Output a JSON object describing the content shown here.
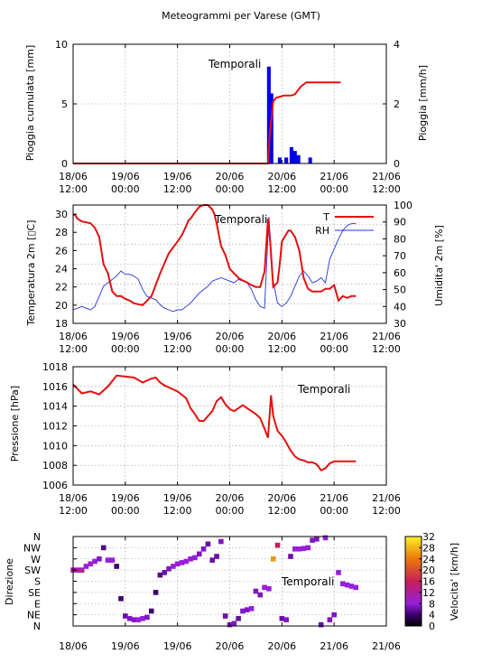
{
  "title": "Meteogrammi per Varese (GMT)",
  "time_ticks": [
    {
      "date": "18/06",
      "time": "12:00"
    },
    {
      "date": "19/06",
      "time": "00:00"
    },
    {
      "date": "19/06",
      "time": "12:00"
    },
    {
      "date": "20/06",
      "time": "00:00"
    },
    {
      "date": "20/06",
      "time": "12:00"
    },
    {
      "date": "21/06",
      "time": "00:00"
    },
    {
      "date": "21/06",
      "time": "12:00"
    }
  ],
  "wind_ticks": [
    "18/06",
    "19/06",
    "19/06",
    "20/06",
    "20/06",
    "21/06",
    "21/06"
  ],
  "colors": {
    "temperature": "#e41010",
    "rh": "#2233dd",
    "rain": "#0000ee",
    "cumulative": "#e41010"
  },
  "chart_data": [
    {
      "type": "bar",
      "annotation": "Temporali",
      "ylabel": "Pioggia cumulata [mm]",
      "y2label": "Pioggia [mm/h]",
      "ylim": [
        0,
        10
      ],
      "y2lim": [
        0,
        4
      ],
      "yticks": [
        "0",
        "5",
        "10"
      ],
      "y2ticks": [
        "0",
        "2",
        "4"
      ],
      "xlim_hours": [
        0,
        72
      ],
      "cumulative_mm": {
        "x_hours": [
          0,
          44.8,
          45.2,
          46,
          46.6,
          47.5,
          48.5,
          50,
          51,
          51.8,
          52.5,
          53.6,
          55,
          58,
          60,
          61.5
        ],
        "values": [
          0,
          0,
          2.4,
          5.2,
          5.5,
          5.6,
          5.7,
          5.7,
          5.8,
          6.2,
          6.5,
          6.8,
          6.8,
          6.8,
          6.8,
          6.8
        ]
      },
      "rain_rate_mmh": {
        "x_hours": [
          45,
          45.6,
          47.5,
          49,
          50.2,
          51,
          51.8,
          54.5
        ],
        "values": [
          3.25,
          2.35,
          0.2,
          0.2,
          0.55,
          0.42,
          0.28,
          0.2
        ]
      }
    },
    {
      "type": "line",
      "annotation": "Temporali",
      "ylabel": "Temperatura 2m [▯C]",
      "y2label": "Umidita' 2m [%]",
      "ylim": [
        18,
        31
      ],
      "y2lim": [
        30,
        100
      ],
      "yticks": [
        "18",
        "20",
        "22",
        "24",
        "26",
        "28",
        "30"
      ],
      "y2ticks": [
        "30",
        "40",
        "50",
        "60",
        "70",
        "80",
        "90",
        "100"
      ],
      "legend": [
        {
          "label": "T",
          "series": "temperature"
        },
        {
          "label": "RH",
          "series": "rh"
        }
      ],
      "legend_position": "top-right",
      "series": [
        {
          "name": "T",
          "x_hours": [
            0,
            0.5,
            1,
            2,
            4,
            5,
            6,
            7,
            7.5,
            8,
            9,
            10,
            11,
            12,
            13,
            14,
            16,
            18,
            20,
            22,
            24,
            25,
            26,
            26.5,
            27,
            28,
            29,
            30,
            31,
            32,
            32.5,
            33,
            34,
            35,
            36,
            37,
            38,
            39,
            40,
            41,
            42,
            43,
            44,
            44.8,
            45.3,
            46,
            47,
            47.5,
            48,
            49,
            49.5,
            50,
            51,
            52,
            53,
            54,
            55,
            56,
            57,
            58,
            59,
            60,
            61,
            62,
            63,
            64,
            65
          ],
          "values": [
            29.9,
            29.9,
            29.5,
            29.2,
            29.0,
            28.5,
            27.5,
            24.5,
            24.0,
            23.5,
            21.5,
            21.0,
            21.0,
            20.7,
            20.5,
            20.2,
            20.0,
            21.0,
            23.5,
            25.7,
            27.0,
            27.7,
            28.7,
            29.3,
            29.5,
            30.2,
            30.8,
            31.0,
            31.0,
            30.5,
            30.0,
            29.0,
            26.5,
            25.5,
            24.0,
            23.5,
            23.0,
            22.7,
            22.5,
            22.2,
            22.0,
            22.0,
            23.7,
            29.5,
            27.0,
            22.0,
            22.5,
            24.5,
            27.0,
            27.8,
            28.2,
            28.2,
            27.5,
            26.0,
            23.0,
            21.8,
            21.5,
            21.5,
            21.5,
            21.8,
            21.8,
            22.2,
            20.5,
            21.0,
            20.8,
            21.0,
            21.0
          ]
        },
        {
          "name": "RH",
          "x_hours": [
            0,
            1,
            2,
            3,
            4,
            5,
            6,
            7,
            8,
            9,
            10,
            11,
            12,
            13,
            14,
            15,
            16,
            17,
            18,
            19,
            20,
            21,
            22,
            23,
            24,
            25,
            26,
            27,
            28,
            29,
            30,
            31,
            32,
            33,
            34,
            35,
            36,
            37,
            38,
            39,
            40,
            41,
            42,
            43,
            44,
            45,
            46,
            47,
            48,
            49,
            50,
            51,
            52,
            53,
            54,
            55,
            56,
            57,
            58,
            59,
            60,
            61,
            62,
            63,
            64,
            65
          ],
          "values": [
            38,
            39,
            40,
            39,
            38,
            40,
            46,
            52,
            54,
            56,
            58,
            61,
            59,
            59,
            58,
            56,
            50,
            46,
            45,
            44,
            41,
            39,
            38,
            37,
            38,
            38,
            40,
            42,
            45,
            48,
            50,
            52,
            55,
            56,
            57,
            56,
            55,
            54,
            56,
            55,
            54,
            50,
            44,
            40,
            39,
            93,
            55,
            42,
            40,
            42,
            46,
            52,
            58,
            61,
            58,
            54,
            55,
            57,
            54,
            68,
            74,
            80,
            85,
            88,
            89,
            89
          ]
        }
      ]
    },
    {
      "type": "line",
      "annotation": "Temporali",
      "ylabel": "Pressione [hPa]",
      "ylim": [
        1006,
        1018
      ],
      "yticks": [
        "1006",
        "1008",
        "1010",
        "1012",
        "1014",
        "1016",
        "1018"
      ],
      "series": [
        {
          "name": "",
          "x_hours": [
            0,
            2,
            4,
            6,
            8,
            10,
            12,
            14,
            16,
            17,
            18,
            19,
            20,
            21,
            22,
            24,
            26,
            27,
            28,
            29,
            30,
            31,
            32,
            33,
            34,
            35,
            36,
            37,
            38,
            39,
            40,
            41,
            42,
            43,
            44,
            44.8,
            45.5,
            46,
            47,
            48,
            49,
            50,
            51,
            52,
            53,
            54,
            55,
            56,
            57,
            58,
            59,
            60,
            61,
            62,
            63,
            64,
            65
          ],
          "values": [
            1016.2,
            1015.3,
            1015.5,
            1015.2,
            1016.0,
            1017.1,
            1017.0,
            1016.9,
            1016.4,
            1016.6,
            1016.8,
            1016.9,
            1016.4,
            1016.1,
            1015.9,
            1015.5,
            1014.8,
            1013.8,
            1013.2,
            1012.5,
            1012.5,
            1013.0,
            1013.5,
            1014.5,
            1014.9,
            1014.2,
            1013.7,
            1013.5,
            1013.8,
            1014.1,
            1013.8,
            1013.5,
            1013.2,
            1012.8,
            1011.7,
            1010.8,
            1015.1,
            1013.0,
            1011.5,
            1011.0,
            1010.3,
            1009.5,
            1008.9,
            1008.6,
            1008.5,
            1008.3,
            1008.3,
            1008.1,
            1007.5,
            1007.7,
            1008.2,
            1008.4,
            1008.4,
            1008.4,
            1008.4,
            1008.4,
            1008.4
          ]
        }
      ]
    },
    {
      "type": "scatter",
      "annotation": "Temporali",
      "ylabel": "Direzione",
      "colorbar_label": "Velocita' [km/h]",
      "colorbar_range": [
        0,
        32
      ],
      "colorbar_ticks": [
        "0",
        "4",
        "8",
        "12",
        "16",
        "20",
        "24",
        "28",
        "32"
      ],
      "direction_labels": [
        "N",
        "NE",
        "E",
        "SE",
        "S",
        "SW",
        "W",
        "NW",
        "N"
      ],
      "points": [
        {
          "x": 0,
          "dir": 225,
          "speed": 11
        },
        {
          "x": 1,
          "dir": 225,
          "speed": 11
        },
        {
          "x": 2,
          "dir": 225,
          "speed": 12
        },
        {
          "x": 3,
          "dir": 240,
          "speed": 8
        },
        {
          "x": 4,
          "dir": 250,
          "speed": 9
        },
        {
          "x": 5,
          "dir": 260,
          "speed": 8
        },
        {
          "x": 6,
          "dir": 270,
          "speed": 7
        },
        {
          "x": 7,
          "dir": 315,
          "speed": 5
        },
        {
          "x": 8,
          "dir": 265,
          "speed": 8
        },
        {
          "x": 9,
          "dir": 265,
          "speed": 8
        },
        {
          "x": 10,
          "dir": 240,
          "speed": 4
        },
        {
          "x": 11,
          "dir": 110,
          "speed": 4
        },
        {
          "x": 12,
          "dir": 40,
          "speed": 6
        },
        {
          "x": 13,
          "dir": 30,
          "speed": 7
        },
        {
          "x": 14,
          "dir": 25,
          "speed": 7
        },
        {
          "x": 15,
          "dir": 25,
          "speed": 8
        },
        {
          "x": 16,
          "dir": 30,
          "speed": 8
        },
        {
          "x": 17,
          "dir": 35,
          "speed": 7
        },
        {
          "x": 18,
          "dir": 60,
          "speed": 4
        },
        {
          "x": 19,
          "dir": 135,
          "speed": 4
        },
        {
          "x": 20,
          "dir": 205,
          "speed": 5
        },
        {
          "x": 21,
          "dir": 215,
          "speed": 6
        },
        {
          "x": 22,
          "dir": 230,
          "speed": 7
        },
        {
          "x": 23,
          "dir": 240,
          "speed": 8
        },
        {
          "x": 24,
          "dir": 250,
          "speed": 8
        },
        {
          "x": 25,
          "dir": 255,
          "speed": 8
        },
        {
          "x": 26,
          "dir": 260,
          "speed": 8
        },
        {
          "x": 27,
          "dir": 270,
          "speed": 8
        },
        {
          "x": 28,
          "dir": 275,
          "speed": 8
        },
        {
          "x": 29,
          "dir": 290,
          "speed": 7
        },
        {
          "x": 30,
          "dir": 310,
          "speed": 7
        },
        {
          "x": 31,
          "dir": 330,
          "speed": 6
        },
        {
          "x": 32,
          "dir": 265,
          "speed": 6
        },
        {
          "x": 33,
          "dir": 280,
          "speed": 6
        },
        {
          "x": 34,
          "dir": 340,
          "speed": 7
        },
        {
          "x": 35,
          "dir": 40,
          "speed": 6
        },
        {
          "x": 36,
          "dir": 5,
          "speed": 7
        },
        {
          "x": 37,
          "dir": 10,
          "speed": 7
        },
        {
          "x": 38,
          "dir": 30,
          "speed": 6
        },
        {
          "x": 39,
          "dir": 60,
          "speed": 7
        },
        {
          "x": 40,
          "dir": 65,
          "speed": 7
        },
        {
          "x": 41,
          "dir": 70,
          "speed": 8
        },
        {
          "x": 42,
          "dir": 140,
          "speed": 7
        },
        {
          "x": 43,
          "dir": 125,
          "speed": 7
        },
        {
          "x": 44,
          "dir": 155,
          "speed": 8
        },
        {
          "x": 45,
          "dir": 150,
          "speed": 8
        },
        {
          "x": 46,
          "dir": 270,
          "speed": 26
        },
        {
          "x": 47,
          "dir": 325,
          "speed": 16
        },
        {
          "x": 48,
          "dir": 30,
          "speed": 6
        },
        {
          "x": 49,
          "dir": 25,
          "speed": 7
        },
        {
          "x": 50,
          "dir": 280,
          "speed": 6
        },
        {
          "x": 51,
          "dir": 310,
          "speed": 8
        },
        {
          "x": 52,
          "dir": 310,
          "speed": 8
        },
        {
          "x": 53,
          "dir": 312,
          "speed": 8
        },
        {
          "x": 54,
          "dir": 315,
          "speed": 8
        },
        {
          "x": 55,
          "dir": 345,
          "speed": 7
        },
        {
          "x": 56,
          "dir": 350,
          "speed": 7
        },
        {
          "x": 57,
          "dir": 5,
          "speed": 6
        },
        {
          "x": 58,
          "dir": 355,
          "speed": 8
        },
        {
          "x": 59,
          "dir": 25,
          "speed": 7
        },
        {
          "x": 60,
          "dir": 45,
          "speed": 7
        },
        {
          "x": 61,
          "dir": 215,
          "speed": 8
        },
        {
          "x": 62,
          "dir": 170,
          "speed": 8
        },
        {
          "x": 63,
          "dir": 165,
          "speed": 8
        },
        {
          "x": 64,
          "dir": 160,
          "speed": 8
        },
        {
          "x": 65,
          "dir": 155,
          "speed": 8
        }
      ]
    }
  ]
}
